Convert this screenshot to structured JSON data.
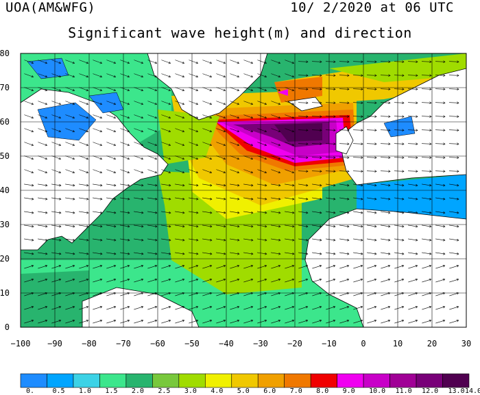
{
  "header": {
    "org": "UOA(AM&WFG)",
    "date": "10/ 2/2020 at 06 UTC",
    "title": "Significant wave height(m) and direction"
  },
  "map": {
    "lon_range": [
      -100,
      30
    ],
    "lat_range": [
      0,
      80
    ],
    "x_ticks": [
      {
        "v": -100,
        "label": "−100"
      },
      {
        "v": -90,
        "label": "−90"
      },
      {
        "v": -80,
        "label": "−80"
      },
      {
        "v": -70,
        "label": "−70"
      },
      {
        "v": -60,
        "label": "−60"
      },
      {
        "v": -50,
        "label": "−50"
      },
      {
        "v": -40,
        "label": "−40"
      },
      {
        "v": -30,
        "label": "−30"
      },
      {
        "v": -20,
        "label": "−20"
      },
      {
        "v": -10,
        "label": "−10"
      },
      {
        "v": 0,
        "label": "0"
      },
      {
        "v": 10,
        "label": "10"
      },
      {
        "v": 20,
        "label": "20"
      },
      {
        "v": 30,
        "label": "30"
      }
    ],
    "y_ticks": [
      {
        "v": 0,
        "label": "0"
      },
      {
        "v": 10,
        "label": "10"
      },
      {
        "v": 20,
        "label": "20"
      },
      {
        "v": 30,
        "label": "30"
      },
      {
        "v": 40,
        "label": "40"
      },
      {
        "v": 50,
        "label": "50"
      },
      {
        "v": 60,
        "label": "60"
      },
      {
        "v": 70,
        "label": "70"
      },
      {
        "v": 80,
        "label": "80"
      }
    ],
    "grid": true,
    "colorbar": {
      "labels": [
        "0.",
        "0.5",
        "1.0",
        "1.5",
        "2.0",
        "2.5",
        "3.0",
        "4.0",
        "5.0",
        "6.0",
        "7.0",
        "8.0",
        "9.0",
        "10.0",
        "11.0",
        "12.0",
        "13.0",
        "14.0"
      ],
      "colors": [
        "#1e8cff",
        "#00a5ff",
        "#3cd2e6",
        "#3ce68c",
        "#28b46e",
        "#78c83c",
        "#a0dc00",
        "#f0f000",
        "#f0c800",
        "#f0a000",
        "#f07800",
        "#f00000",
        "#f000f0",
        "#c800c8",
        "#a00096",
        "#780078",
        "#500050"
      ]
    }
  }
}
